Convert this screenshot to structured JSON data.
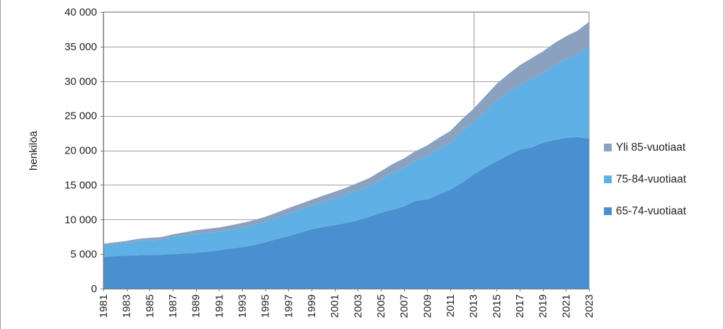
{
  "chart_data": {
    "type": "area",
    "stacked": true,
    "title": "",
    "xlabel": "",
    "ylabel": "henkilöä",
    "ylim": [
      0,
      40000
    ],
    "y_ticks": [
      "0",
      "5 000",
      "10 000",
      "15 000",
      "20 000",
      "25 000",
      "30 000",
      "35 000",
      "40 000"
    ],
    "y_tick_values": [
      0,
      5000,
      10000,
      15000,
      20000,
      25000,
      30000,
      35000,
      40000
    ],
    "x": [
      1981,
      1982,
      1983,
      1984,
      1985,
      1986,
      1987,
      1988,
      1989,
      1990,
      1991,
      1992,
      1993,
      1994,
      1995,
      1996,
      1997,
      1998,
      1999,
      2000,
      2001,
      2002,
      2003,
      2004,
      2005,
      2006,
      2007,
      2008,
      2009,
      2010,
      2011,
      2012,
      2013,
      2014,
      2015,
      2016,
      2017,
      2018,
      2019,
      2020,
      2021,
      2022,
      2023
    ],
    "x_tick_labels": [
      "1981",
      "1983",
      "1985",
      "1987",
      "1989",
      "1991",
      "1993",
      "1995",
      "1997",
      "1999",
      "2001",
      "2003",
      "2005",
      "2007",
      "2009",
      "2011",
      "2013",
      "2015",
      "2017",
      "2019",
      "2021",
      "2023"
    ],
    "vertical_marker_x": 2013,
    "grid": "horizontal",
    "legend_position": "right",
    "series": [
      {
        "name": "65-74-vuotiaat",
        "color": "#4a90d0",
        "values": [
          4600,
          4700,
          4800,
          4850,
          4900,
          4900,
          5000,
          5100,
          5200,
          5350,
          5550,
          5800,
          6000,
          6300,
          6700,
          7200,
          7600,
          8100,
          8600,
          8900,
          9200,
          9500,
          9900,
          10400,
          11000,
          11400,
          11900,
          12700,
          12900,
          13600,
          14300,
          15300,
          16500,
          17500,
          18400,
          19300,
          20100,
          20400,
          21100,
          21500,
          21800,
          21900,
          21700
        ]
      },
      {
        "name": "75-84-vuotiaat",
        "color": "#5fb0e4",
        "values": [
          1700,
          1750,
          1800,
          2050,
          2100,
          2200,
          2500,
          2600,
          2700,
          2700,
          2700,
          2700,
          2800,
          2900,
          3000,
          3050,
          3250,
          3300,
          3400,
          3650,
          3800,
          4100,
          4300,
          4400,
          4750,
          5300,
          5600,
          5800,
          6300,
          6600,
          6800,
          7400,
          7600,
          8100,
          8800,
          9100,
          9300,
          9900,
          10100,
          10800,
          11400,
          12000,
          13300
        ]
      },
      {
        "name": "Yli 85-vuotiaat",
        "color": "#8aa2c0",
        "values": [
          200,
          250,
          300,
          300,
          350,
          350,
          350,
          450,
          550,
          600,
          600,
          650,
          700,
          700,
          700,
          750,
          800,
          850,
          850,
          900,
          1000,
          1000,
          1100,
          1200,
          1250,
          1300,
          1350,
          1400,
          1500,
          1600,
          1700,
          1800,
          1900,
          2200,
          2400,
          2600,
          2900,
          3000,
          3100,
          3200,
          3300,
          3400,
          3600
        ]
      }
    ]
  }
}
